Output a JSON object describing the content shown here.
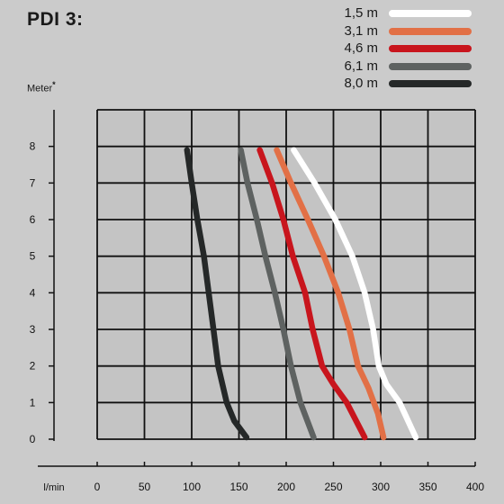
{
  "title": "PDI 3:",
  "y_unit": "Meter",
  "y_unit_mark": "*",
  "x_unit": "l/min",
  "legend": [
    {
      "label": "1,5 m",
      "color": "#ffffff"
    },
    {
      "label": "3,1 m",
      "color": "#e27046"
    },
    {
      "label": "4,6 m",
      "color": "#c8151d"
    },
    {
      "label": "6,1 m",
      "color": "#5e6261"
    },
    {
      "label": "8,0 m",
      "color": "#252828"
    }
  ],
  "chart_data": {
    "type": "line",
    "title": "PDI 3:",
    "xlabel": "l/min",
    "ylabel": "Meter*",
    "xlim": [
      0,
      400
    ],
    "ylim": [
      0,
      9
    ],
    "x_ticks": [
      0,
      50,
      100,
      150,
      200,
      250,
      300,
      350,
      400
    ],
    "y_ticks": [
      0,
      1,
      2,
      3,
      4,
      5,
      6,
      7,
      8
    ],
    "grid": true,
    "legend_position": "top-right",
    "series": [
      {
        "name": "1,5 m",
        "color": "#ffffff",
        "points": [
          [
            208,
            7.9
          ],
          [
            230,
            7
          ],
          [
            252,
            6
          ],
          [
            270,
            5
          ],
          [
            283,
            4
          ],
          [
            292,
            3
          ],
          [
            298,
            2
          ],
          [
            306,
            1.5
          ],
          [
            320,
            1
          ],
          [
            337,
            0.05
          ]
        ]
      },
      {
        "name": "3,1 m",
        "color": "#e27046",
        "points": [
          [
            190,
            7.9
          ],
          [
            205,
            7
          ],
          [
            223,
            6
          ],
          [
            240,
            5
          ],
          [
            255,
            4
          ],
          [
            267,
            3
          ],
          [
            276,
            2
          ],
          [
            287,
            1.4
          ],
          [
            297,
            0.7
          ],
          [
            303,
            0.05
          ]
        ]
      },
      {
        "name": "4,6 m",
        "color": "#c8151d",
        "points": [
          [
            172,
            7.9
          ],
          [
            185,
            7
          ],
          [
            197,
            6
          ],
          [
            207,
            5
          ],
          [
            220,
            4
          ],
          [
            228,
            3
          ],
          [
            238,
            2
          ],
          [
            250,
            1.5
          ],
          [
            264,
            1
          ],
          [
            283,
            0.05
          ]
        ]
      },
      {
        "name": "6,1 m",
        "color": "#5e6261",
        "points": [
          [
            152,
            7.9
          ],
          [
            159,
            7
          ],
          [
            169,
            6
          ],
          [
            178,
            5
          ],
          [
            188,
            4
          ],
          [
            197,
            3
          ],
          [
            205,
            2
          ],
          [
            215,
            1
          ],
          [
            229,
            0.05
          ]
        ]
      },
      {
        "name": "8,0 m",
        "color": "#252828",
        "points": [
          [
            95,
            7.9
          ],
          [
            100,
            7
          ],
          [
            106,
            6
          ],
          [
            113,
            5
          ],
          [
            118,
            4
          ],
          [
            123,
            3
          ],
          [
            128,
            2
          ],
          [
            137,
            1
          ],
          [
            145,
            0.5
          ],
          [
            158,
            0.05
          ]
        ]
      }
    ]
  }
}
